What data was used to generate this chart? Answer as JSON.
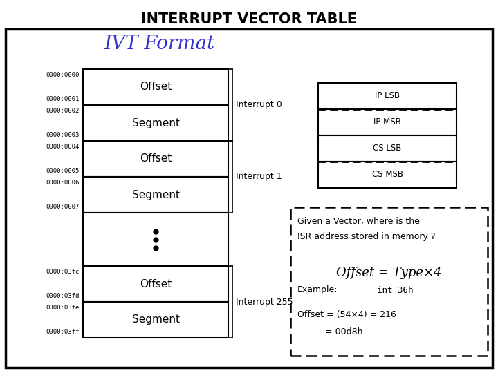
{
  "title": "INTERRUPT VECTOR TABLE",
  "subtitle": "IVT Format",
  "subtitle_color": "#3333CC",
  "bg_color": "#FFFFFF",
  "figsize": [
    7.2,
    5.4
  ],
  "dpi": 100,
  "rows_top": [
    {
      "label": "Offset",
      "addr_top": "0000:0000",
      "addr_bot": "0000:0001",
      "group": "Interrupt 0"
    },
    {
      "label": "Segment",
      "addr_top": "0000:0002",
      "addr_bot": "0000:0003",
      "group": null
    },
    {
      "label": "Offset",
      "addr_top": "0000:0004",
      "addr_bot": "0000:0005",
      "group": "Interrupt 1"
    },
    {
      "label": "Segment",
      "addr_top": "0000:0006",
      "addr_bot": "0000:0007",
      "group": null
    }
  ],
  "rows_bot": [
    {
      "label": "Offset",
      "addr_top": "0000:03fc",
      "addr_bot": "0000:03fd",
      "group": "Interrupt 255"
    },
    {
      "label": "Segment",
      "addr_top": "0000:03fe",
      "addr_bot": "0000:03ff",
      "group": null
    }
  ],
  "ivt_rows": [
    "IP LSB",
    "IP MSB",
    "CS LSB",
    "CS MSB"
  ],
  "ivt_dashed_below": [
    0,
    2
  ],
  "info_line1": "Given a Vector, where is the",
  "info_line2": "ISR address stored in memory ?",
  "formula": "Offset = Type×4",
  "example_label": "Example:",
  "example_code": "int 36h",
  "calc_line1": "Offset = (54×4) = 216",
  "calc_line2": "= 00d8h"
}
